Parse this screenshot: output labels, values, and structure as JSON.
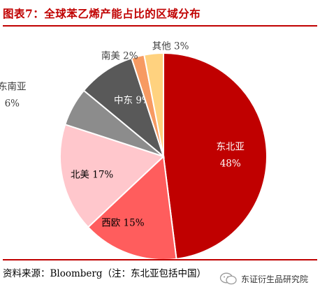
{
  "title": "图表7：全球苯乙烯产能占比的区域分布",
  "chart_data": {
    "type": "pie",
    "slices": [
      {
        "label": "东北亚",
        "value": 48,
        "color": "#c00000",
        "text_color": "#ffffff",
        "display": "48%"
      },
      {
        "label": "西欧",
        "value": 15,
        "color": "#ff5d5d",
        "text_color": "#000000",
        "display": "15%"
      },
      {
        "label": "北美",
        "value": 17,
        "color": "#ffc7cc",
        "text_color": "#000000",
        "display": "17%"
      },
      {
        "label": "东南亚",
        "value": 6,
        "color": "#8c8c8c",
        "text_color": "#404040",
        "display": "6%"
      },
      {
        "label": "中东",
        "value": 9,
        "color": "#595959",
        "text_color": "#ffffff",
        "display": "9%"
      },
      {
        "label": "南美",
        "value": 2,
        "color": "#f79a62",
        "text_color": "#404040",
        "display": "2%"
      },
      {
        "label": "其他",
        "value": 3,
        "color": "#ffd27f",
        "text_color": "#404040",
        "display": "3%"
      }
    ]
  },
  "source": "资料来源：Bloomberg（注：东北亚包括中国）",
  "watermark": "东证衍生品研究院"
}
